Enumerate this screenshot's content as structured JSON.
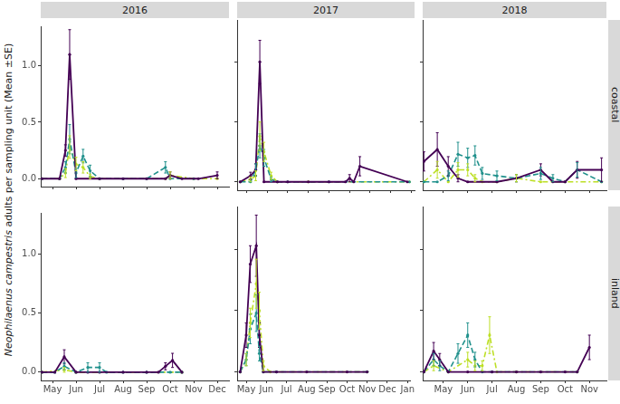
{
  "chart_data": {
    "type": "line",
    "y_label": "Neophilaenus campestris adults per sampling unit (Mean ±SE)",
    "y_label_italic": "Neophilaenus campestris",
    "ylim": [
      -0.07,
      1.35
    ],
    "yticks": [
      {
        "value": 0,
        "label": "0.0"
      },
      {
        "value": 0.5,
        "label": "0.5"
      },
      {
        "value": 1,
        "label": "1.0"
      }
    ],
    "grid": false,
    "columns": [
      {
        "title": "2016",
        "xlim": [
          4.5,
          12.5
        ],
        "xticks": [
          {
            "value": 5,
            "label": "May"
          },
          {
            "value": 6,
            "label": "Jun"
          },
          {
            "value": 7,
            "label": "Jul"
          },
          {
            "value": 8,
            "label": "Aug"
          },
          {
            "value": 9,
            "label": "Sep"
          },
          {
            "value": 10,
            "label": "Oct"
          },
          {
            "value": 11,
            "label": "Nov"
          },
          {
            "value": 12,
            "label": "Dec"
          }
        ]
      },
      {
        "title": "2017",
        "xlim": [
          4.55,
          13.15
        ],
        "xticks": [
          {
            "value": 5,
            "label": "May"
          },
          {
            "value": 6,
            "label": "Jun"
          },
          {
            "value": 7,
            "label": "Jul"
          },
          {
            "value": 8,
            "label": "Aug"
          },
          {
            "value": 9,
            "label": "Sep"
          },
          {
            "value": 10,
            "label": "Oct"
          },
          {
            "value": 11,
            "label": "Nov"
          },
          {
            "value": 12,
            "label": "Dec"
          },
          {
            "value": 13,
            "label": "Jan"
          }
        ]
      },
      {
        "title": "2018",
        "xlim": [
          4.15,
          11.7
        ],
        "xticks": [
          {
            "value": 5,
            "label": "May"
          },
          {
            "value": 6,
            "label": "Jun"
          },
          {
            "value": 7,
            "label": "Jul"
          },
          {
            "value": 8,
            "label": "Aug"
          },
          {
            "value": 9,
            "label": "Sep"
          },
          {
            "value": 10,
            "label": "Oct"
          },
          {
            "value": 11,
            "label": "Nov"
          }
        ]
      }
    ],
    "rows": [
      {
        "title": "coastal"
      },
      {
        "title": "inland"
      }
    ],
    "panels": [
      {
        "column": "2016",
        "row": "coastal",
        "tick_labels": "y",
        "series": [
          {
            "color": "#440154",
            "line_style": "solid",
            "marker": "circle",
            "x": [
              4.55,
              5.3,
              5.55,
              5.73,
              6.0,
              7.0,
              8.0,
              9.0,
              9.8,
              10.0,
              10.5,
              11.2,
              12.0
            ],
            "values": [
              0,
              0,
              0.25,
              1.1,
              0,
              0,
              0,
              0,
              0,
              0.03,
              0,
              0,
              0.03
            ],
            "se": [
              0,
              0,
              0.05,
              0.22,
              0,
              0,
              0,
              0,
              0,
              0.03,
              0,
              0,
              0.03
            ]
          },
          {
            "color": "#21918c",
            "line_style": "dashed",
            "marker": "circle",
            "x": [
              4.55,
              5.3,
              5.55,
              5.73,
              6.0,
              6.3,
              6.6,
              7.0,
              8.0,
              9.0,
              9.8,
              10.0,
              11.0
            ],
            "values": [
              0,
              0,
              0.1,
              0.35,
              0.05,
              0.2,
              0.07,
              0,
              0,
              0,
              0.1,
              0,
              0
            ],
            "se": [
              0,
              0,
              0.05,
              0.13,
              0.04,
              0.06,
              0.05,
              0,
              0,
              0,
              0.05,
              0,
              0
            ]
          },
          {
            "color": "#bddf26",
            "line_style": "dotdash",
            "marker": "circle",
            "x": [
              4.55,
              5.3,
              5.55,
              5.73,
              6.0,
              6.3,
              6.6,
              7.0,
              9.8,
              10.0,
              11.0,
              12.0
            ],
            "values": [
              0,
              0,
              0.05,
              0.28,
              0.13,
              0.1,
              0.02,
              0,
              0,
              0.03,
              0,
              0
            ],
            "se": [
              0,
              0,
              0.04,
              0.1,
              0.06,
              0.05,
              0.02,
              0,
              0,
              0.03,
              0,
              0
            ]
          }
        ]
      },
      {
        "column": "2017",
        "row": "coastal",
        "tick_labels": false,
        "series": [
          {
            "color": "#440154",
            "line_style": "solid",
            "marker": "circle",
            "x": [
              4.7,
              5.2,
              5.45,
              5.65,
              5.85,
              6.5,
              7.0,
              8.0,
              9.0,
              9.8,
              10.0,
              10.2,
              10.5,
              12.8
            ],
            "values": [
              0,
              0.05,
              0.1,
              1.0,
              0,
              0,
              0,
              0,
              0,
              0,
              0.03,
              0,
              0.13,
              0
            ],
            "se": [
              0,
              0.03,
              0.05,
              0.18,
              0,
              0,
              0,
              0,
              0,
              0,
              0.03,
              0,
              0.08,
              0
            ]
          },
          {
            "color": "#21918c",
            "line_style": "dashed",
            "marker": "circle",
            "x": [
              4.7,
              5.2,
              5.45,
              5.65,
              5.85,
              6.2,
              6.5,
              7.0,
              9.0,
              12.9
            ],
            "values": [
              0,
              0,
              0.1,
              0.3,
              0.2,
              0.02,
              0,
              0,
              0,
              0
            ],
            "se": [
              0,
              0,
              0.05,
              0.1,
              0.07,
              0.02,
              0,
              0,
              0,
              0
            ]
          },
          {
            "color": "#bddf26",
            "line_style": "dotdash",
            "marker": "circle",
            "x": [
              4.7,
              5.2,
              5.45,
              5.65,
              5.85,
              6.2,
              6.5,
              8.0,
              12.9
            ],
            "values": [
              0,
              0.02,
              0.05,
              0.38,
              0.25,
              0.05,
              0,
              0,
              0
            ],
            "se": [
              0,
              0.02,
              0.04,
              0.12,
              0.08,
              0.03,
              0,
              0,
              0
            ]
          }
        ]
      },
      {
        "column": "2018",
        "row": "coastal",
        "tick_labels": false,
        "series": [
          {
            "color": "#440154",
            "line_style": "solid",
            "marker": "circle",
            "x": [
              4.2,
              4.75,
              5.2,
              5.6,
              6.0,
              7.2,
              8.0,
              9.0,
              9.5,
              10.0,
              10.5,
              11.5
            ],
            "values": [
              0.17,
              0.27,
              0.13,
              0.03,
              0,
              0,
              0.03,
              0.1,
              0,
              0,
              0.1,
              0.1
            ],
            "se": [
              0.08,
              0.14,
              0.08,
              0.03,
              0,
              0,
              0.03,
              0.05,
              0,
              0,
              0.07,
              0.1
            ]
          },
          {
            "color": "#21918c",
            "line_style": "dashed",
            "marker": "circle",
            "x": [
              4.2,
              4.75,
              5.2,
              5.6,
              6.0,
              6.3,
              6.6,
              7.2,
              8.0,
              9.0,
              9.5,
              10.0,
              10.5,
              11.5
            ],
            "values": [
              0,
              0,
              0.05,
              0.23,
              0.2,
              0.22,
              0.07,
              0.05,
              0.03,
              0.07,
              0.03,
              0,
              0.1,
              0
            ],
            "se": [
              0,
              0,
              0.04,
              0.1,
              0.08,
              0.08,
              0.05,
              0.04,
              0.03,
              0.05,
              0.03,
              0,
              0.06,
              0
            ]
          },
          {
            "color": "#bddf26",
            "line_style": "dotdash",
            "marker": "circle",
            "x": [
              4.2,
              4.75,
              5.2,
              5.6,
              6.0,
              6.3,
              6.6,
              7.2,
              8.0,
              9.0,
              10.0,
              11.5
            ],
            "values": [
              0,
              0.1,
              0,
              0.1,
              0.1,
              0.03,
              0,
              0,
              0.03,
              0,
              0,
              0
            ],
            "se": [
              0,
              0.07,
              0,
              0.06,
              0.05,
              0.03,
              0,
              0,
              0.03,
              0,
              0,
              0
            ]
          }
        ]
      },
      {
        "column": "2016",
        "row": "inland",
        "series": [
          {
            "color": "#440154",
            "line_style": "solid",
            "marker": "circle",
            "x": [
              4.55,
              5.1,
              5.5,
              6.0,
              6.5,
              7.0,
              8.0,
              9.0,
              9.5,
              9.8,
              10.1,
              10.5
            ],
            "values": [
              0,
              0,
              0.13,
              0,
              0,
              0,
              0,
              0,
              0,
              0.05,
              0.1,
              0
            ],
            "se": [
              0,
              0,
              0.06,
              0,
              0,
              0,
              0,
              0,
              0,
              0.03,
              0.06,
              0
            ]
          },
          {
            "color": "#21918c",
            "line_style": "dashed",
            "marker": "circle",
            "x": [
              4.55,
              5.1,
              5.5,
              6.0,
              6.5,
              7.0,
              7.3,
              8.0,
              9.0,
              10.0,
              10.5
            ],
            "values": [
              0,
              0,
              0.05,
              0,
              0.04,
              0.04,
              0,
              0,
              0,
              0,
              0
            ],
            "se": [
              0,
              0,
              0.03,
              0,
              0.04,
              0.04,
              0,
              0,
              0,
              0,
              0
            ]
          },
          {
            "color": "#bddf26",
            "line_style": "dotdash",
            "marker": "circle",
            "x": [
              4.55,
              5.5,
              6.0,
              10.5
            ],
            "values": [
              0,
              0.02,
              0,
              0
            ],
            "se": [
              0,
              0.02,
              0,
              0
            ]
          }
        ]
      },
      {
        "column": "2017",
        "row": "inland",
        "tick_labels": "x",
        "series": [
          {
            "color": "#440154",
            "line_style": "solid",
            "marker": "circle",
            "x": [
              4.7,
              5.0,
              5.2,
              5.5,
              5.65,
              5.85,
              6.5,
              8.0,
              10.0,
              11.0
            ],
            "values": [
              0,
              0.3,
              0.88,
              1.03,
              0.3,
              0,
              0,
              0,
              0,
              0
            ],
            "se": [
              0,
              0.1,
              0.15,
              0.25,
              0.1,
              0,
              0,
              0,
              0,
              0
            ]
          },
          {
            "color": "#21918c",
            "line_style": "dashed",
            "marker": "circle",
            "x": [
              4.7,
              5.0,
              5.2,
              5.5,
              5.65,
              5.85,
              6.5,
              11.0
            ],
            "values": [
              0,
              0.1,
              0.35,
              0.48,
              0.15,
              0,
              0,
              0
            ],
            "se": [
              0,
              0.05,
              0.12,
              0.15,
              0.06,
              0,
              0,
              0
            ]
          },
          {
            "color": "#bddf26",
            "line_style": "dotdash",
            "marker": "circle",
            "x": [
              4.7,
              5.0,
              5.2,
              5.5,
              5.65,
              5.85,
              6.2,
              11.0
            ],
            "values": [
              0,
              0.1,
              0.4,
              0.72,
              0.5,
              0.05,
              0,
              0
            ],
            "se": [
              0,
              0.05,
              0.12,
              0.2,
              0.15,
              0.04,
              0,
              0
            ]
          }
        ]
      },
      {
        "column": "2018",
        "row": "inland",
        "tick_labels": "x",
        "series": [
          {
            "color": "#440154",
            "line_style": "solid",
            "marker": "circle",
            "x": [
              4.2,
              4.6,
              4.85,
              5.2,
              6.0,
              7.0,
              8.0,
              9.0,
              10.0,
              10.5,
              11.0
            ],
            "values": [
              0,
              0.17,
              0.1,
              0,
              0,
              0,
              0,
              0,
              0,
              0,
              0.2
            ],
            "se": [
              0,
              0.07,
              0.05,
              0,
              0,
              0,
              0,
              0,
              0,
              0,
              0.1
            ]
          },
          {
            "color": "#21918c",
            "line_style": "dashed",
            "marker": "circle",
            "x": [
              4.2,
              4.6,
              4.85,
              5.2,
              5.6,
              6.0,
              6.3,
              6.6,
              7.0,
              10.5
            ],
            "values": [
              0,
              0.1,
              0.05,
              0,
              0.15,
              0.3,
              0.1,
              0,
              0,
              0
            ],
            "se": [
              0,
              0.05,
              0.04,
              0,
              0.08,
              0.1,
              0.06,
              0,
              0,
              0
            ]
          },
          {
            "color": "#bddf26",
            "line_style": "dotdash",
            "marker": "circle",
            "x": [
              4.2,
              4.6,
              5.2,
              6.0,
              6.3,
              6.6,
              6.9,
              7.2,
              8.0,
              10.5
            ],
            "values": [
              0,
              0.05,
              0,
              0.1,
              0.05,
              0.05,
              0.3,
              0,
              0,
              0
            ],
            "se": [
              0,
              0.04,
              0,
              0.06,
              0.04,
              0.04,
              0.15,
              0,
              0,
              0
            ]
          }
        ]
      }
    ]
  }
}
